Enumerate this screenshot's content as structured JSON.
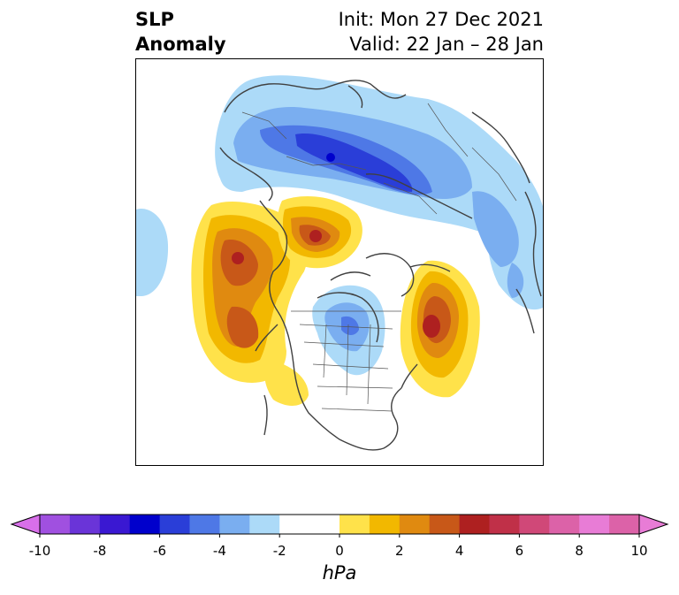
{
  "header": {
    "title_line1": "SLP",
    "title_line2": "Anomaly",
    "init": "Init: Mon 27 Dec 2021",
    "valid": "Valid: 22 Jan – 28 Jan"
  },
  "colorbar": {
    "unit": "hPa",
    "min": -10,
    "max": 10,
    "step": 1,
    "tick_labels": [
      "-10",
      "-8",
      "-6",
      "-4",
      "-2",
      "0",
      "2",
      "4",
      "6",
      "8",
      "10"
    ],
    "colors": [
      "#d86fea",
      "#a050e0",
      "#6a34d8",
      "#3a18d2",
      "#0000cc",
      "#2a3ed8",
      "#4e78e6",
      "#7aaef0",
      "#acdaf8",
      "#ffffff",
      "#ffffff",
      "#ffe24a",
      "#f2b800",
      "#e08a10",
      "#c85818",
      "#ae2020",
      "#c03048",
      "#d04878",
      "#dc62a8",
      "#e87cd6"
    ]
  },
  "map": {
    "projection": "north-polar-stereographic",
    "features": [
      {
        "name": "negative-anomaly-eurasia",
        "min_value": -7
      },
      {
        "name": "negative-anomaly-canada-arctic",
        "min_value": -3
      },
      {
        "name": "negative-anomaly-north-pacific-west",
        "min_value": -1
      },
      {
        "name": "positive-anomaly-north-pacific",
        "max_value": 5
      },
      {
        "name": "positive-anomaly-bering",
        "max_value": 5
      },
      {
        "name": "positive-anomaly-north-atlantic",
        "max_value": 5
      }
    ]
  }
}
